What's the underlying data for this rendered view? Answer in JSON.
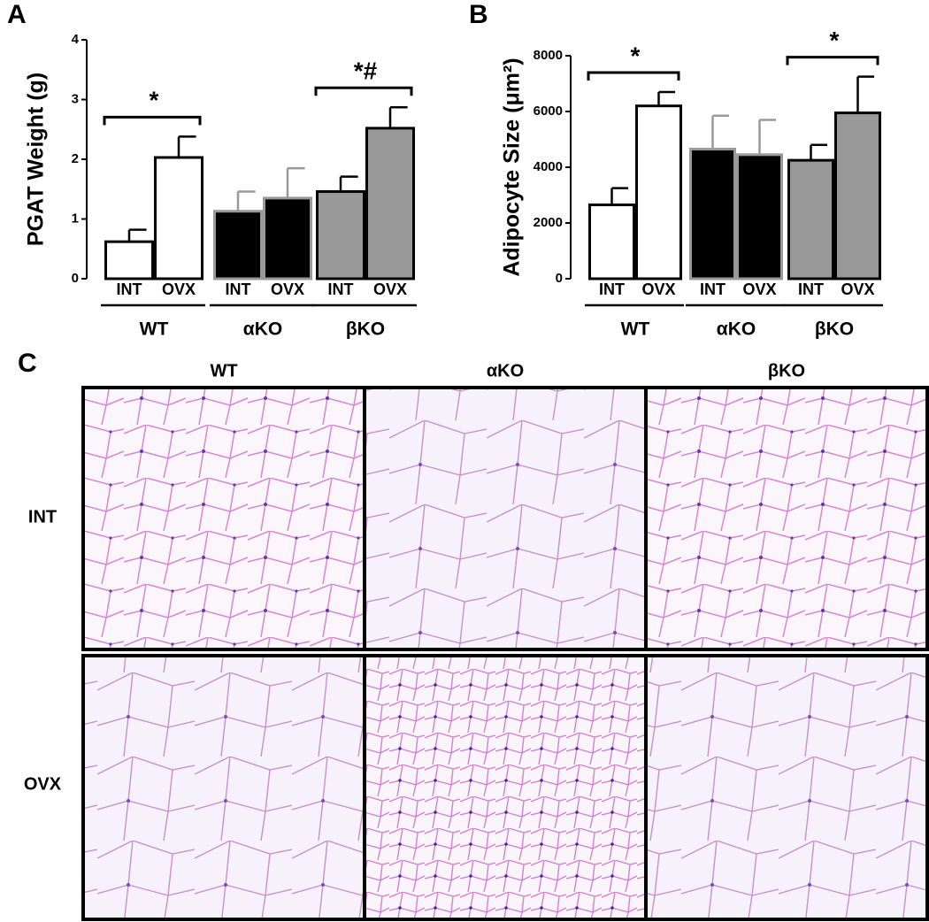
{
  "chart_data": [
    {
      "type": "bar",
      "panel": "A",
      "y_label": "PGAT Weight (g)",
      "categories": [
        "INT",
        "OVX",
        "INT",
        "OVX",
        "INT",
        "OVX"
      ],
      "groups": [
        {
          "name": "WT",
          "annotation": "*"
        },
        {
          "name": "αKO"
        },
        {
          "name": "βKO",
          "annotation": "*#"
        }
      ],
      "values": [
        0.62,
        2.03,
        1.13,
        1.35,
        1.46,
        2.52
      ],
      "errors": [
        0.2,
        0.35,
        0.33,
        0.5,
        0.25,
        0.35
      ],
      "colors": [
        "#ffffff",
        "#ffffff",
        "#000000",
        "#000000",
        "#999999",
        "#999999"
      ],
      "edge_colors": [
        "#000000",
        "#000000",
        "#999999",
        "#999999",
        "#000000",
        "#000000"
      ],
      "ylim": [
        0,
        4
      ],
      "yticks": [
        0,
        1,
        2,
        3,
        4
      ]
    },
    {
      "type": "bar",
      "panel": "B",
      "y_label": "Adipocyte Size (μm²)",
      "categories": [
        "INT",
        "OVX",
        "INT",
        "OVX",
        "INT",
        "OVX"
      ],
      "groups": [
        {
          "name": "WT",
          "annotation": "*"
        },
        {
          "name": "αKO"
        },
        {
          "name": "βKO",
          "annotation": "*"
        }
      ],
      "values": [
        2650,
        6200,
        4650,
        4450,
        4250,
        5950
      ],
      "errors": [
        600,
        500,
        1200,
        1250,
        550,
        1300
      ],
      "colors": [
        "#ffffff",
        "#ffffff",
        "#000000",
        "#000000",
        "#999999",
        "#999999"
      ],
      "edge_colors": [
        "#000000",
        "#000000",
        "#999999",
        "#999999",
        "#000000",
        "#000000"
      ],
      "ylim": [
        0,
        8000
      ],
      "yticks": [
        0,
        2000,
        4000,
        6000,
        8000
      ]
    }
  ],
  "histology": {
    "panel": "C",
    "columns": [
      "WT",
      "αKO",
      "βKO"
    ],
    "rows": [
      "INT",
      "OVX"
    ]
  }
}
